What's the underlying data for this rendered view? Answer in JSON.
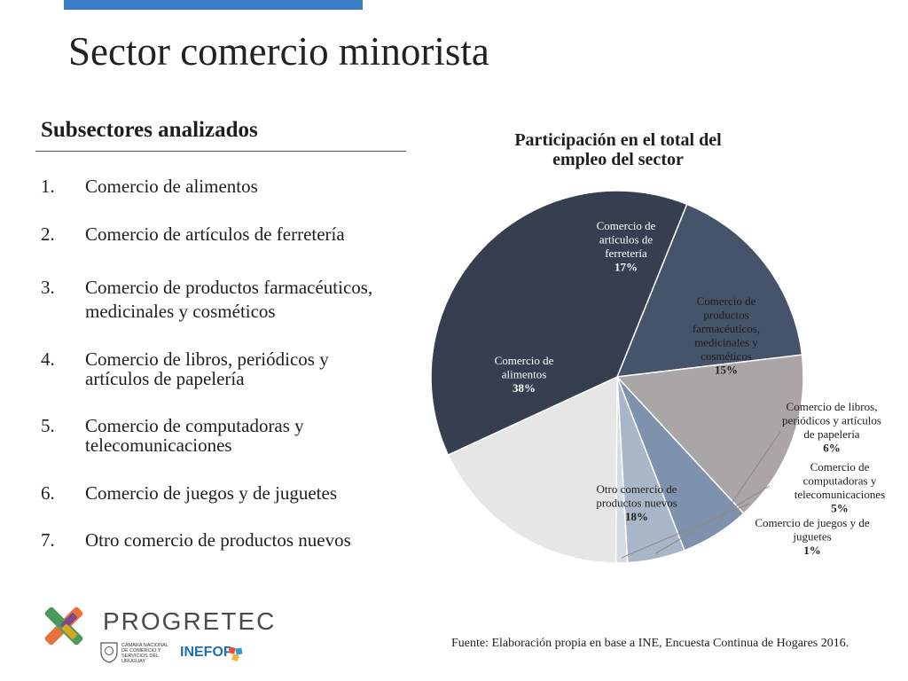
{
  "slide": {
    "title": "Sector comercio minorista",
    "subheading": "Subsectores analizados",
    "items": [
      {
        "num": "1.",
        "lines": [
          "Comercio de alimentos"
        ]
      },
      {
        "num": "2.",
        "lines": [
          "Comercio de artículos de ferretería"
        ]
      },
      {
        "num": "3.",
        "lines": [
          "Comercio de productos farmacéuticos,",
          "medicinales y cosméticos"
        ]
      },
      {
        "num": "4.",
        "lines": [
          "Comercio de libros, periódicos y",
          "artículos de papelería"
        ]
      },
      {
        "num": "5.",
        "lines": [
          "Comercio de computadoras y",
          "telecomunicaciones"
        ]
      },
      {
        "num": "6.",
        "lines": [
          "Comercio de juegos y de juguetes"
        ]
      },
      {
        "num": "7.",
        "lines": [
          "Otro comercio de productos nuevos"
        ]
      }
    ],
    "source": "Fuente: Elaboración propia en base a INE, Encuesta Continua de Hogares 2016.",
    "brand": "PROGRETEC",
    "chamber_text": [
      "CÁMARA NACIONAL",
      "DE COMERCIO Y",
      "SERVICIOS DEL",
      "URUGUAY"
    ],
    "inefop": "INEFOP"
  },
  "chart_data": {
    "type": "pie",
    "title_lines": [
      "Participación en el total del",
      "empleo del sector"
    ],
    "slices": [
      {
        "label_lines": [
          "Comercio de",
          "artículos de",
          "ferretería"
        ],
        "value": 17,
        "value_label": "17%",
        "color": "#45536b",
        "text_color": "#ffffff"
      },
      {
        "label_lines": [
          "Comercio de",
          "productos",
          "farmacéuticos,",
          "medicinales y",
          "cosméticos"
        ],
        "value": 15,
        "value_label": "15%",
        "color": "#aaa5a6",
        "text_color": "#1e1e1e"
      },
      {
        "label_lines": [
          "Comercio de libros,",
          "periódicos y artículos",
          "de papelería"
        ],
        "value": 6,
        "value_label": "6%",
        "color": "#7e92ad",
        "text_color": "#1e1e1e"
      },
      {
        "label_lines": [
          "Comercio de",
          "computadoras y",
          "telecomunicaciones"
        ],
        "value": 5,
        "value_label": "5%",
        "color": "#a9b6c8",
        "text_color": "#1e1e1e"
      },
      {
        "label_lines": [
          "Comercio de juegos y de",
          "juguetes"
        ],
        "value": 1,
        "value_label": "1%",
        "color": "#d4dbe5",
        "text_color": "#1e1e1e"
      },
      {
        "label_lines": [
          "Otro comercio de",
          "productos nuevos"
        ],
        "value": 18,
        "value_label": "18%",
        "color": "#e6e6e6",
        "text_color": "#1e1e1e"
      },
      {
        "label_lines": [
          "Comercio de",
          "alimentos"
        ],
        "value": 38,
        "value_label": "38%",
        "color": "#353f50",
        "text_color": "#ffffff"
      }
    ]
  }
}
